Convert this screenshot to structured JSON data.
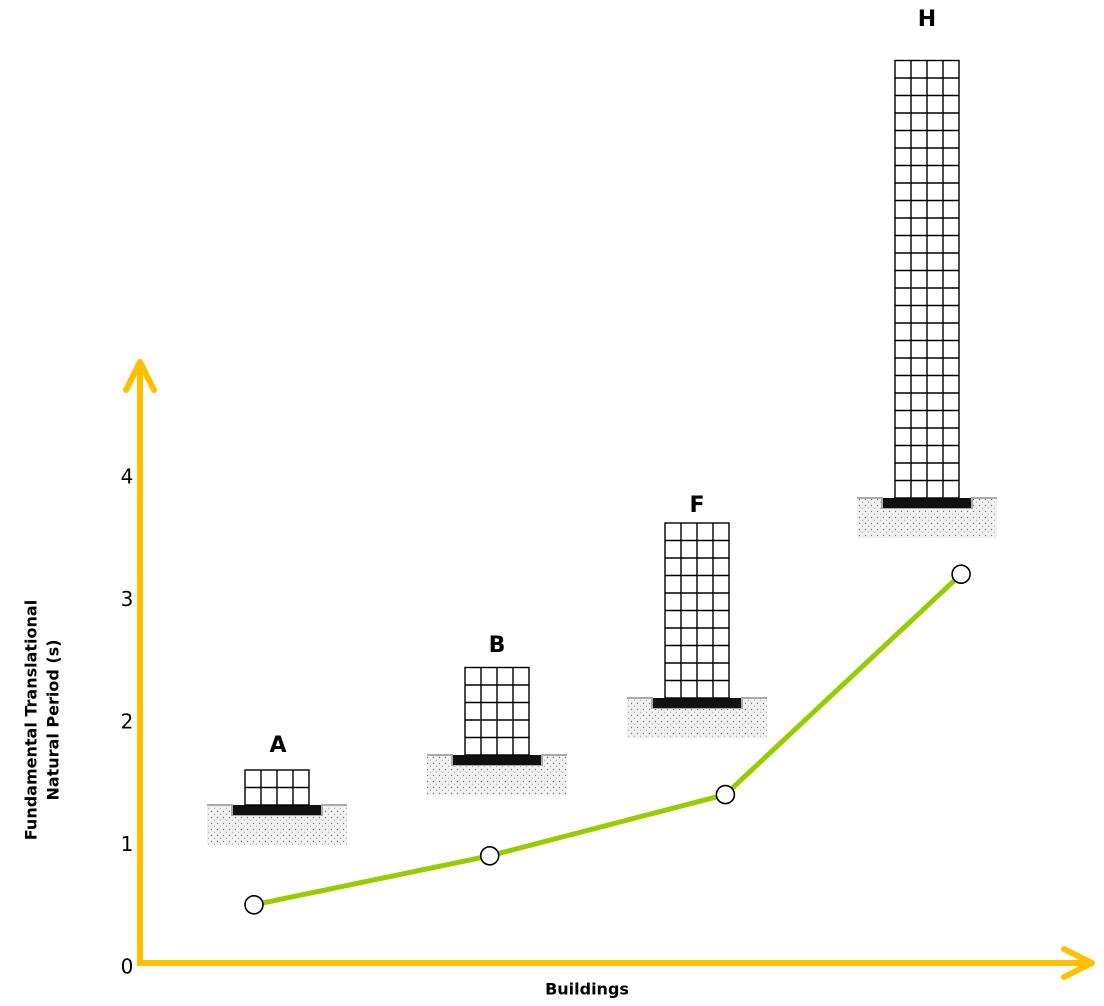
{
  "chart_data": {
    "type": "line",
    "x_label": "Buildings",
    "y_label": [
      "Fundamental Translational",
      "Natural Period (s)"
    ],
    "categories": [
      "A",
      "B",
      "F",
      "H"
    ],
    "values": [
      0.5,
      0.9,
      1.4,
      3.2
    ],
    "color": "#99cc00",
    "axis_color": "#ffc000",
    "ylim": [
      0,
      4.9
    ],
    "yticks": [
      0,
      1,
      2,
      3,
      4
    ],
    "grid": false
  }
}
